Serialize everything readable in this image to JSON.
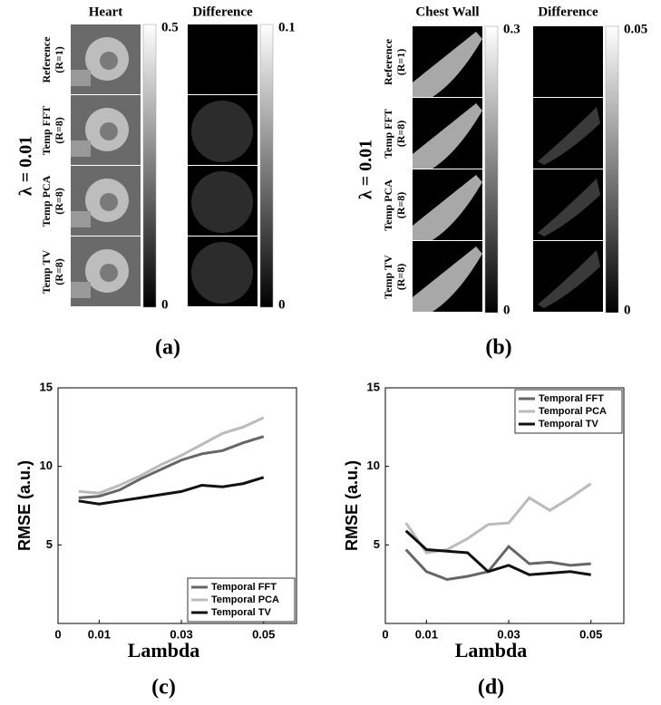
{
  "panels": {
    "a": {
      "label": "(a)",
      "lambda": "λ = 0.01",
      "columns": [
        "Heart",
        "Difference"
      ],
      "rows": [
        [
          "Reference",
          "(R=1)"
        ],
        [
          "Temp FFT",
          "(R=8)"
        ],
        [
          "Temp PCA",
          "(R=8)"
        ],
        [
          "Temp TV",
          "(R=8)"
        ]
      ],
      "colorbars": [
        [
          0.5,
          0
        ],
        [
          0.1,
          0
        ]
      ]
    },
    "b": {
      "label": "(b)",
      "lambda": "λ = 0.01",
      "columns": [
        "Chest Wall",
        "Difference"
      ],
      "rows": [
        [
          "Reference",
          "(R=1)"
        ],
        [
          "Temp FFT",
          "(R=8)"
        ],
        [
          "Temp PCA",
          "(R=8)"
        ],
        [
          "Temp TV",
          "(R=8)"
        ]
      ],
      "colorbars": [
        [
          0.3,
          0
        ],
        [
          0.05,
          0
        ]
      ]
    }
  },
  "chart_data": [
    {
      "type": "line",
      "panel_label": "(c)",
      "x_label": "Lambda",
      "y_label": "RMSE (a.u.)",
      "x": [
        0.005,
        0.01,
        0.015,
        0.02,
        0.025,
        0.03,
        0.035,
        0.04,
        0.045,
        0.05
      ],
      "series": [
        {
          "name": "Temporal FFT",
          "color": "#666666",
          "values": [
            8.0,
            8.1,
            8.5,
            9.2,
            9.8,
            10.4,
            10.8,
            11.0,
            11.5,
            11.9
          ]
        },
        {
          "name": "Temporal PCA",
          "color": "#bbbbbb",
          "values": [
            8.4,
            8.3,
            8.8,
            9.4,
            10.1,
            10.7,
            11.4,
            12.1,
            12.5,
            13.1
          ]
        },
        {
          "name": "Temporal TV",
          "color": "#111111",
          "values": [
            7.8,
            7.6,
            7.8,
            8.0,
            8.2,
            8.4,
            8.8,
            8.7,
            8.9,
            9.3
          ]
        }
      ],
      "xlim": [
        0,
        0.058
      ],
      "xticks": [
        0,
        0.01,
        0.03,
        0.05
      ],
      "ylim": [
        0,
        15
      ],
      "yticks": [
        5,
        10,
        15
      ],
      "legend": "lower right"
    },
    {
      "type": "line",
      "panel_label": "(d)",
      "x_label": "Lambda",
      "y_label": "RMSE (a.u.)",
      "x": [
        0.005,
        0.01,
        0.015,
        0.02,
        0.025,
        0.03,
        0.035,
        0.04,
        0.045,
        0.05
      ],
      "series": [
        {
          "name": "Temporal FFT",
          "color": "#666666",
          "values": [
            4.7,
            3.3,
            2.8,
            3.0,
            3.3,
            4.9,
            3.8,
            3.9,
            3.7,
            3.8
          ]
        },
        {
          "name": "Temporal PCA",
          "color": "#bbbbbb",
          "values": [
            6.4,
            4.5,
            4.7,
            5.4,
            6.3,
            6.4,
            8.0,
            7.2,
            8.0,
            8.9
          ]
        },
        {
          "name": "Temporal TV",
          "color": "#111111",
          "values": [
            5.9,
            4.7,
            4.6,
            4.5,
            3.3,
            3.7,
            3.1,
            3.2,
            3.3,
            3.1
          ]
        }
      ],
      "xlim": [
        0,
        0.058
      ],
      "xticks": [
        0,
        0.01,
        0.03,
        0.05
      ],
      "ylim": [
        0,
        15
      ],
      "yticks": [
        5,
        10,
        15
      ],
      "legend": "upper right"
    }
  ]
}
